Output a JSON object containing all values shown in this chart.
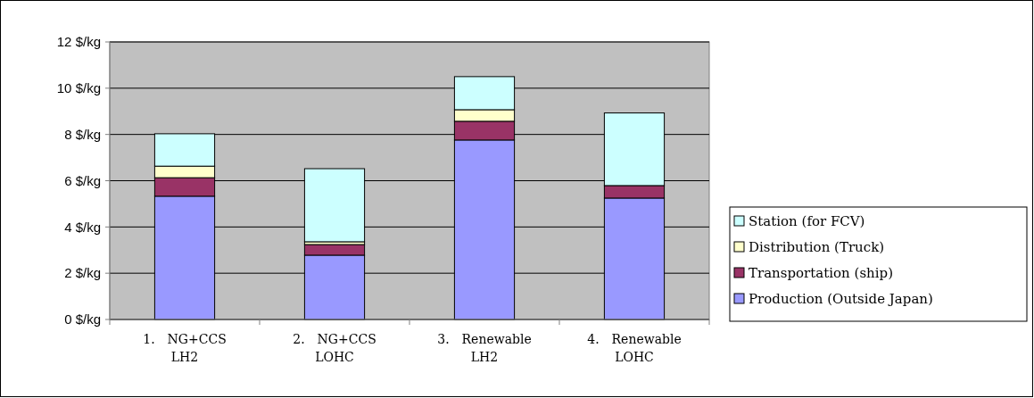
{
  "chart_data": {
    "type": "bar",
    "stacked": true,
    "categories": [
      "1.　NG+CCS\nLH2",
      "2.　NG+CCS\nLOHC",
      "3.　Renewable\nLH2",
      "4.　Renewable\nLOHC"
    ],
    "series": [
      {
        "name": "Production (Outside Japan)",
        "color": "#9999ff",
        "values": [
          5.33,
          2.78,
          7.76,
          5.25
        ]
      },
      {
        "name": "Transportation (ship)",
        "color": "#993366",
        "values": [
          0.8,
          0.46,
          0.81,
          0.54
        ]
      },
      {
        "name": "Distribution (Truck)",
        "color": "#ffffcc",
        "values": [
          0.5,
          0.12,
          0.5,
          null
        ]
      },
      {
        "name": "Station (for FCV)",
        "color": "#ccffff",
        "values": [
          1.4,
          3.16,
          1.43,
          3.14
        ]
      }
    ],
    "ylim": [
      0,
      12
    ],
    "yticks": [
      {
        "value": 0,
        "label": "0 $/kg"
      },
      {
        "value": 2,
        "label": "2 $/kg"
      },
      {
        "value": 4,
        "label": "4 $/kg"
      },
      {
        "value": 6,
        "label": "6 $/kg"
      },
      {
        "value": 8,
        "label": "8 $/kg"
      },
      {
        "value": 10,
        "label": "10 $/kg"
      },
      {
        "value": 12,
        "label": "12 $/kg"
      }
    ],
    "grid": "y",
    "legend": "right"
  }
}
